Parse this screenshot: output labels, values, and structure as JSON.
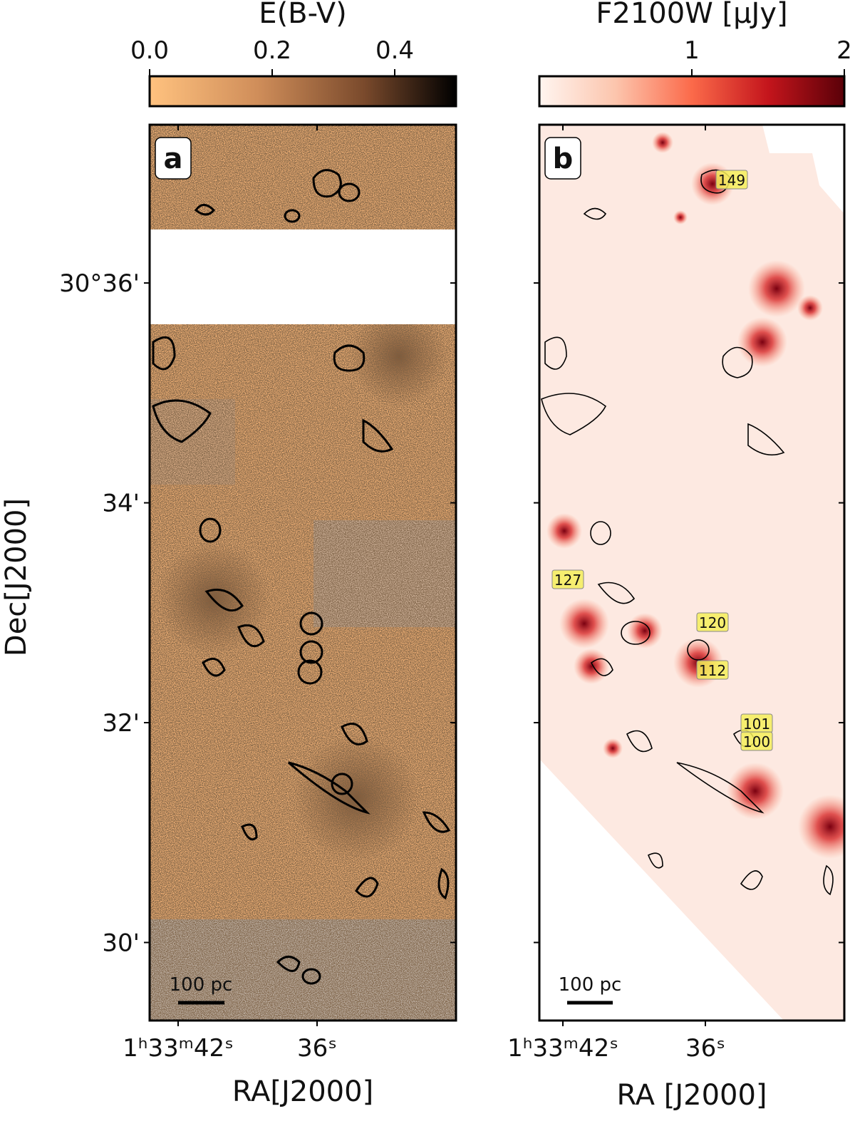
{
  "panels": [
    {
      "label": "a",
      "colorbar": {
        "label": "E(B-V)",
        "lim": [
          0,
          0.5
        ],
        "ticks": [
          {
            "value": 0,
            "label": "0.0"
          },
          {
            "value": 0.2,
            "label": "0.2"
          },
          {
            "value": 0.4,
            "label": "0.4"
          }
        ]
      },
      "xaxis": {
        "label": "RA[J2000]",
        "lim": [
          43.23,
          30.0
        ],
        "ticks": [
          {
            "value": 42,
            "label": "1ʰ33ᵐ42ˢ"
          },
          {
            "value": 36,
            "label": "36ˢ"
          }
        ]
      },
      "yaxis": {
        "label": "Dec[J2000]",
        "lim": [
          29.29,
          37.44
        ],
        "ticks": [
          {
            "value": 36,
            "label": "30°36'"
          },
          {
            "value": 34,
            "label": "34'"
          },
          {
            "value": 32,
            "label": "32'"
          },
          {
            "value": 30,
            "label": "30'"
          }
        ]
      },
      "scalebar": "100 pc"
    },
    {
      "label": "b",
      "colorbar": {
        "label": "F2100W [μJy]",
        "lim": [
          0,
          2
        ],
        "ticks": [
          1,
          2
        ]
      },
      "xaxis": {
        "label": "RA [J2000]",
        "lim": [
          42.99,
          30.15
        ],
        "ticks": [
          {
            "value": 42,
            "label": "1ʰ33ᵐ42ˢ"
          },
          {
            "value": 36,
            "label": "36ˢ"
          }
        ]
      },
      "scalebar": "100 pc",
      "annotations": [
        "149",
        "127",
        "120",
        "112",
        "101",
        "100"
      ]
    }
  ]
}
